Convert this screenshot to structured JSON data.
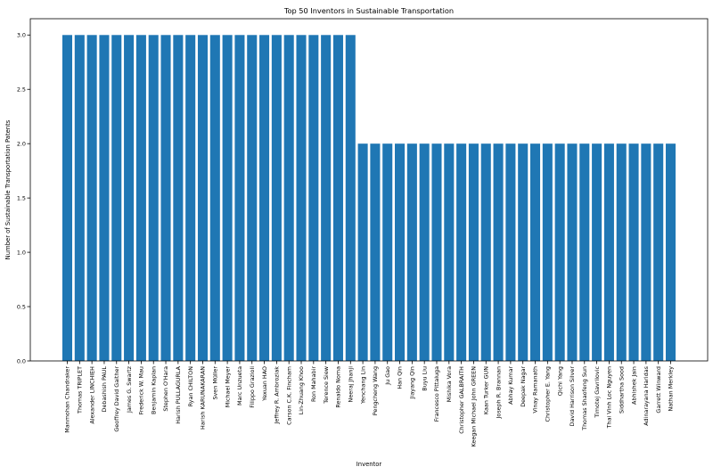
{
  "chart_data": {
    "type": "bar",
    "title": "Top 50 Inventors in Sustainable Transportation",
    "xlabel": "Inventor",
    "ylabel": "Number of Sustainable Transportation Patents",
    "ylim": [
      0,
      3.15
    ],
    "yticks": [
      "0.0",
      "0.5",
      "1.0",
      "1.5",
      "2.0",
      "2.5",
      "3.0"
    ],
    "grid": false,
    "bar_color": "#1f77b4",
    "categories": [
      "Manmohan Chandraker",
      "Thomas TRIPLET",
      "Alexander LINCHIEH",
      "Debashish PAUL",
      "Geoffrey David Gaither",
      "James G. Swartz",
      "Frederick W. Mau",
      "Benjamin Kaplan",
      "Stephen O'Hara",
      "Harish PULLAGURLA",
      "Ryan CHILTON",
      "Harish KARUNAKARAN",
      "Sven Müller",
      "Michael Meyer",
      "Marc Unzueta",
      "Filippo Grazioli",
      "Yexuan HAO",
      "Jeffrey R. Ambroziak",
      "Carson C.K. Fincham",
      "Lin-Zhuang Khoo",
      "Ron Mahabir",
      "Terence Siew",
      "Renaldo Noma",
      "Neeraj Jhanji",
      "Yenchang Lin",
      "Pengcheng Wang",
      "Ju Gao",
      "Han Qin",
      "Jiayang Qin",
      "Buyu Liu",
      "Francesco Pittaluga",
      "Mishika Vora",
      "Christopher GALBRAITH",
      "Keegan Michael John GREEN",
      "Kaan Turker GUN",
      "Joseph R. Brannan",
      "Abhay Kumar",
      "Deepak Nagar",
      "Vinay Ramanath",
      "Christopher E. Yang",
      "Qichi Yang",
      "David Harrison Silver",
      "Thomas Shaofeng Sun",
      "Timotej Gavrilovic",
      "Thai Vinh Loc Nguyen",
      "Siddhartha Sood",
      "Abhishek Jain",
      "Adinarayana Haridas",
      "Garrett Winward",
      "Nathan Merkley"
    ],
    "values": [
      3,
      3,
      3,
      3,
      3,
      3,
      3,
      3,
      3,
      3,
      3,
      3,
      3,
      3,
      3,
      3,
      3,
      3,
      3,
      3,
      3,
      3,
      3,
      3,
      2,
      2,
      2,
      2,
      2,
      2,
      2,
      2,
      2,
      2,
      2,
      2,
      2,
      2,
      2,
      2,
      2,
      2,
      2,
      2,
      2,
      2,
      2,
      2,
      2,
      2
    ]
  }
}
